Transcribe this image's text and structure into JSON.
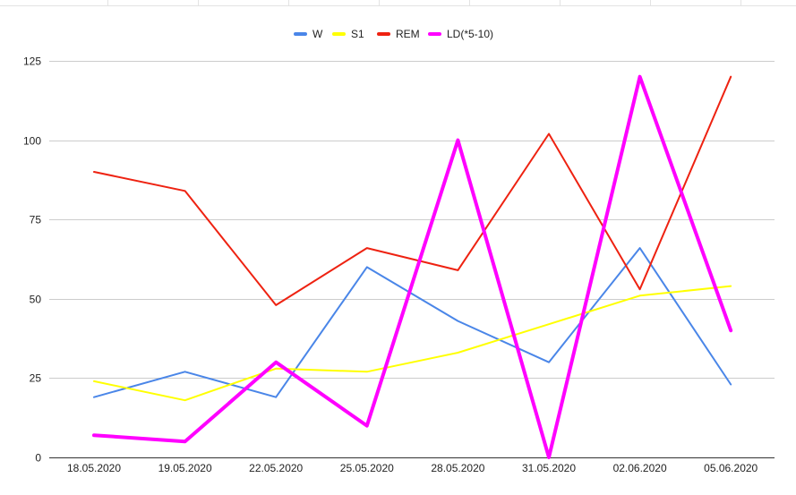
{
  "chart_data": {
    "type": "line",
    "categories": [
      "18.05.2020",
      "19.05.2020",
      "22.05.2020",
      "25.05.2020",
      "28.05.2020",
      "31.05.2020",
      "02.06.2020",
      "05.06.2020"
    ],
    "series": [
      {
        "name": "W",
        "color": "#4a86e8",
        "values": [
          19,
          27,
          19,
          60,
          43,
          30,
          66,
          23
        ]
      },
      {
        "name": "S1",
        "color": "#ffff00",
        "values": [
          24,
          18,
          28,
          27,
          33,
          42,
          51,
          54
        ]
      },
      {
        "name": "REM",
        "color": "#ee2211",
        "values": [
          90,
          84,
          48,
          66,
          59,
          102,
          53,
          120
        ]
      },
      {
        "name": "LD(*5-10)",
        "color": "#ff00ff",
        "values": [
          7,
          5,
          30,
          10,
          100,
          0,
          120,
          40
        ]
      }
    ],
    "ylim": [
      0,
      125
    ],
    "yticks": [
      0,
      25,
      50,
      75,
      100,
      125
    ],
    "grid": true,
    "legend": "top-center",
    "title": "",
    "xlabel": "",
    "ylabel": ""
  }
}
